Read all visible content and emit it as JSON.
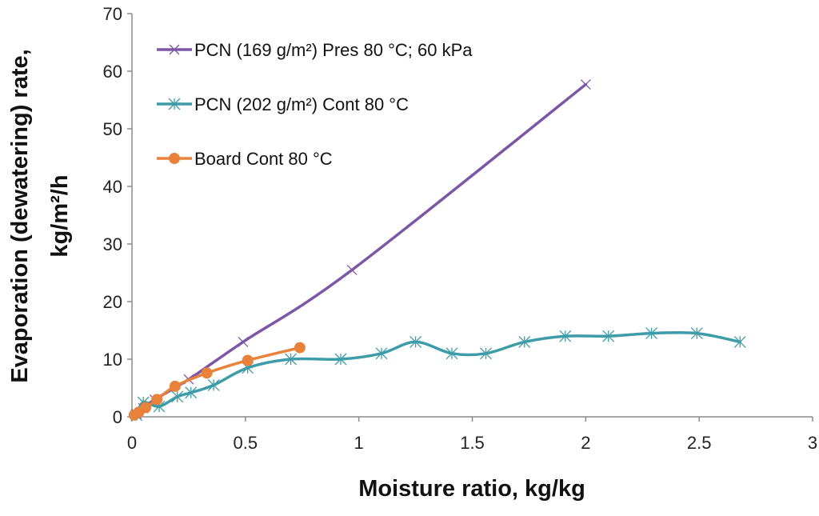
{
  "chart_data": {
    "type": "line",
    "title": "",
    "xlabel": "Moisture ratio, kg/kg",
    "ylabel_line1": "Evaporation (dewatering) rate,",
    "ylabel_line2": "kg/m²/h",
    "xlim": [
      0,
      3
    ],
    "ylim": [
      0,
      70
    ],
    "x_ticks": [
      "0",
      "0.5",
      "1",
      "1.5",
      "2",
      "2.5",
      "3"
    ],
    "y_ticks": [
      "0",
      "10",
      "20",
      "30",
      "40",
      "50",
      "60",
      "70"
    ],
    "legend_position": "top-left",
    "grid": false,
    "series": [
      {
        "name": "PCN (169 g/m²) Pres 80 °C; 60 kPa",
        "color": "#7B57A6",
        "marker": "x",
        "x": [
          0.02,
          0.05,
          0.1,
          0.25,
          0.49,
          0.97,
          2.0
        ],
        "y": [
          0.5,
          1.5,
          3.0,
          6.5,
          13.0,
          25.5,
          57.7
        ]
      },
      {
        "name": "PCN (202 g/m²) Cont 80 °C",
        "color": "#3D9CA8",
        "marker": "asterisk",
        "x": [
          0.02,
          0.05,
          0.12,
          0.2,
          0.26,
          0.36,
          0.51,
          0.7,
          0.92,
          1.1,
          1.25,
          1.41,
          1.56,
          1.73,
          1.91,
          2.1,
          2.29,
          2.49,
          2.68
        ],
        "y": [
          0.3,
          2.5,
          1.8,
          3.5,
          4.2,
          5.5,
          8.5,
          10.0,
          10.0,
          11.0,
          13.0,
          11.0,
          11.0,
          13.0,
          14.0,
          14.0,
          14.5,
          14.5,
          13.0
        ]
      },
      {
        "name": "Board Cont  80 °C",
        "color": "#E8823A",
        "marker": "circle",
        "x": [
          0.01,
          0.03,
          0.06,
          0.11,
          0.19,
          0.33,
          0.51,
          0.74
        ],
        "y": [
          0.3,
          0.8,
          1.6,
          3.0,
          5.3,
          7.6,
          9.8,
          12.0
        ]
      }
    ]
  }
}
